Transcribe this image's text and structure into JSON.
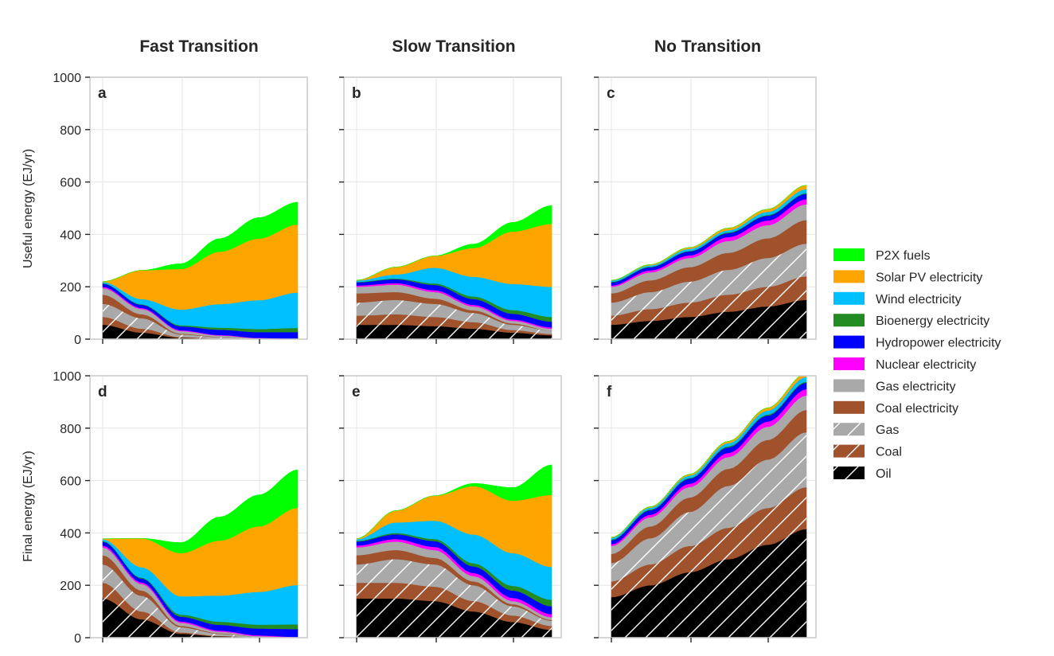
{
  "column_titles": [
    "Fast Transition",
    "Slow Transition",
    "No Transition"
  ],
  "row_ylabels": [
    "Useful energy (EJ/yr)",
    "Final energy (EJ/yr)"
  ],
  "y_ticks": [
    "0",
    "200",
    "400",
    "600",
    "800",
    "1000"
  ],
  "legend": [
    {
      "label": "P2X fuels",
      "color": "#00ff00",
      "hatch": false
    },
    {
      "label": "Solar PV electricity",
      "color": "#ffa500",
      "hatch": false
    },
    {
      "label": "Wind electricity",
      "color": "#00bfff",
      "hatch": false
    },
    {
      "label": "Bioenergy electricity",
      "color": "#228b22",
      "hatch": false
    },
    {
      "label": "Hydropower electricity",
      "color": "#0000ff",
      "hatch": false
    },
    {
      "label": "Nuclear electricity",
      "color": "#ff00ff",
      "hatch": false
    },
    {
      "label": "Gas electricity",
      "color": "#a9a9a9",
      "hatch": false
    },
    {
      "label": "Coal electricity",
      "color": "#a0522d",
      "hatch": false
    },
    {
      "label": "Gas",
      "color": "#a9a9a9",
      "hatch": true
    },
    {
      "label": "Coal",
      "color": "#a0522d",
      "hatch": true
    },
    {
      "label": "Oil",
      "color": "#000000",
      "hatch": true
    }
  ],
  "chart_data": [
    {
      "panel": "a",
      "type": "area",
      "stacked": true,
      "column": "Fast Transition",
      "ylabel": "Useful energy (EJ/yr)",
      "ylim": [
        0,
        1000
      ],
      "x": [
        0,
        1,
        2,
        3,
        4,
        5
      ],
      "series": [
        {
          "name": "Oil",
          "values": [
            55,
            25,
            5,
            2,
            0,
            0
          ]
        },
        {
          "name": "Coal",
          "values": [
            30,
            15,
            3,
            1,
            0,
            0
          ]
        },
        {
          "name": "Gas",
          "values": [
            50,
            40,
            10,
            5,
            2,
            1
          ]
        },
        {
          "name": "Coal electricity",
          "values": [
            35,
            15,
            3,
            1,
            0,
            0
          ]
        },
        {
          "name": "Gas electricity",
          "values": [
            25,
            20,
            10,
            5,
            2,
            0
          ]
        },
        {
          "name": "Nuclear electricity",
          "values": [
            5,
            4,
            3,
            2,
            1,
            1
          ]
        },
        {
          "name": "Hydropower electricity",
          "values": [
            12,
            12,
            15,
            20,
            22,
            25
          ]
        },
        {
          "name": "Bioenergy electricity",
          "values": [
            2,
            2,
            4,
            8,
            12,
            16
          ]
        },
        {
          "name": "Wind electricity",
          "values": [
            5,
            20,
            60,
            90,
            110,
            135
          ]
        },
        {
          "name": "Solar PV electricity",
          "values": [
            1,
            110,
            155,
            200,
            235,
            260
          ]
        },
        {
          "name": "P2X fuels",
          "values": [
            0,
            0,
            20,
            50,
            80,
            85
          ]
        }
      ]
    },
    {
      "panel": "b",
      "type": "area",
      "stacked": true,
      "column": "Slow Transition",
      "ylim": [
        0,
        1000
      ],
      "x": [
        0,
        1,
        2,
        3,
        4,
        5
      ],
      "series": [
        {
          "name": "Oil",
          "values": [
            55,
            55,
            50,
            40,
            25,
            15
          ]
        },
        {
          "name": "Coal",
          "values": [
            35,
            40,
            35,
            25,
            10,
            5
          ]
        },
        {
          "name": "Gas",
          "values": [
            50,
            55,
            50,
            35,
            20,
            12
          ]
        },
        {
          "name": "Coal electricity",
          "values": [
            35,
            30,
            20,
            10,
            5,
            0
          ]
        },
        {
          "name": "Gas electricity",
          "values": [
            25,
            28,
            25,
            15,
            10,
            8
          ]
        },
        {
          "name": "Nuclear electricity",
          "values": [
            5,
            6,
            7,
            6,
            5,
            5
          ]
        },
        {
          "name": "Hydropower electricity",
          "values": [
            12,
            15,
            20,
            22,
            22,
            22
          ]
        },
        {
          "name": "Bioenergy electricity",
          "values": [
            2,
            3,
            6,
            10,
            14,
            18
          ]
        },
        {
          "name": "Wind electricity",
          "values": [
            5,
            15,
            60,
            75,
            100,
            115
          ]
        },
        {
          "name": "Solar PV electricity",
          "values": [
            1,
            28,
            45,
            110,
            200,
            240
          ]
        },
        {
          "name": "P2X fuels",
          "values": [
            0,
            0,
            0,
            15,
            35,
            70
          ]
        }
      ]
    },
    {
      "panel": "c",
      "type": "area",
      "stacked": true,
      "column": "No Transition",
      "ylim": [
        0,
        1000
      ],
      "x": [
        0,
        1,
        2,
        3,
        4,
        5
      ],
      "series": [
        {
          "name": "Oil",
          "values": [
            55,
            70,
            85,
            105,
            125,
            150
          ]
        },
        {
          "name": "Coal",
          "values": [
            35,
            45,
            55,
            65,
            75,
            90
          ]
        },
        {
          "name": "Gas",
          "values": [
            50,
            65,
            80,
            95,
            110,
            125
          ]
        },
        {
          "name": "Coal electricity",
          "values": [
            35,
            45,
            55,
            65,
            75,
            90
          ]
        },
        {
          "name": "Gas electricity",
          "values": [
            25,
            30,
            35,
            45,
            50,
            60
          ]
        },
        {
          "name": "Nuclear electricity",
          "values": [
            5,
            8,
            10,
            15,
            18,
            20
          ]
        },
        {
          "name": "Hydropower electricity",
          "values": [
            12,
            12,
            15,
            15,
            18,
            20
          ]
        },
        {
          "name": "Bioenergy electricity",
          "values": [
            2,
            2,
            2,
            3,
            3,
            3
          ]
        },
        {
          "name": "Wind electricity",
          "values": [
            5,
            5,
            8,
            8,
            12,
            15
          ]
        },
        {
          "name": "Solar PV electricity",
          "values": [
            1,
            3,
            5,
            8,
            10,
            15
          ]
        },
        {
          "name": "P2X fuels",
          "values": [
            0,
            0,
            0,
            0,
            0,
            0
          ]
        }
      ]
    },
    {
      "panel": "d",
      "type": "area",
      "stacked": true,
      "column": "Fast Transition",
      "ylabel": "Final energy (EJ/yr)",
      "ylim": [
        0,
        1000
      ],
      "x": [
        0,
        1,
        2,
        3,
        4,
        5
      ],
      "series": [
        {
          "name": "Oil",
          "values": [
            150,
            70,
            15,
            5,
            1,
            0
          ]
        },
        {
          "name": "Coal",
          "values": [
            60,
            30,
            5,
            2,
            0,
            0
          ]
        },
        {
          "name": "Gas",
          "values": [
            70,
            60,
            20,
            8,
            3,
            1
          ]
        },
        {
          "name": "Coal electricity",
          "values": [
            35,
            20,
            5,
            2,
            0,
            0
          ]
        },
        {
          "name": "Gas electricity",
          "values": [
            30,
            25,
            12,
            6,
            2,
            0
          ]
        },
        {
          "name": "Nuclear electricity",
          "values": [
            7,
            6,
            5,
            4,
            3,
            2
          ]
        },
        {
          "name": "Hydropower electricity",
          "values": [
            15,
            15,
            18,
            22,
            26,
            30
          ]
        },
        {
          "name": "Bioenergy electricity",
          "values": [
            3,
            3,
            8,
            12,
            15,
            18
          ]
        },
        {
          "name": "Wind electricity",
          "values": [
            6,
            40,
            70,
            100,
            125,
            150
          ]
        },
        {
          "name": "Solar PV electricity",
          "values": [
            2,
            110,
            165,
            210,
            250,
            295
          ]
        },
        {
          "name": "P2X fuels",
          "values": [
            0,
            0,
            40,
            90,
            120,
            145
          ]
        }
      ]
    },
    {
      "panel": "e",
      "type": "area",
      "stacked": true,
      "column": "Slow Transition",
      "ylim": [
        0,
        1000
      ],
      "x": [
        0,
        1,
        2,
        3,
        4,
        5
      ],
      "series": [
        {
          "name": "Oil",
          "values": [
            150,
            150,
            140,
            100,
            60,
            30
          ]
        },
        {
          "name": "Coal",
          "values": [
            60,
            60,
            55,
            40,
            25,
            15
          ]
        },
        {
          "name": "Gas",
          "values": [
            70,
            90,
            85,
            60,
            35,
            20
          ]
        },
        {
          "name": "Coal electricity",
          "values": [
            35,
            35,
            25,
            15,
            8,
            3
          ]
        },
        {
          "name": "Gas electricity",
          "values": [
            30,
            32,
            30,
            20,
            12,
            10
          ]
        },
        {
          "name": "Nuclear electricity",
          "values": [
            7,
            10,
            12,
            12,
            12,
            12
          ]
        },
        {
          "name": "Hydropower electricity",
          "values": [
            15,
            18,
            22,
            25,
            28,
            30
          ]
        },
        {
          "name": "Bioenergy electricity",
          "values": [
            3,
            5,
            8,
            12,
            18,
            25
          ]
        },
        {
          "name": "Wind electricity",
          "values": [
            6,
            40,
            70,
            110,
            125,
            125
          ]
        },
        {
          "name": "Solar PV electricity",
          "values": [
            2,
            45,
            95,
            185,
            200,
            275
          ]
        },
        {
          "name": "P2X fuels",
          "values": [
            0,
            0,
            0,
            10,
            50,
            115
          ]
        }
      ]
    },
    {
      "panel": "f",
      "type": "area",
      "stacked": true,
      "column": "No Transition",
      "ylim": [
        0,
        1000
      ],
      "x": [
        0,
        1,
        2,
        3,
        4,
        5
      ],
      "series": [
        {
          "name": "Oil",
          "values": [
            155,
            200,
            250,
            300,
            355,
            415
          ]
        },
        {
          "name": "Coal",
          "values": [
            60,
            80,
            100,
            120,
            140,
            160
          ]
        },
        {
          "name": "Gas",
          "values": [
            70,
            100,
            130,
            160,
            185,
            210
          ]
        },
        {
          "name": "Coal electricity",
          "values": [
            35,
            45,
            55,
            65,
            75,
            85
          ]
        },
        {
          "name": "Gas electricity",
          "values": [
            30,
            35,
            40,
            45,
            50,
            55
          ]
        },
        {
          "name": "Nuclear electricity",
          "values": [
            7,
            10,
            13,
            16,
            20,
            24
          ]
        },
        {
          "name": "Hydropower electricity",
          "values": [
            15,
            17,
            19,
            21,
            23,
            25
          ]
        },
        {
          "name": "Bioenergy electricity",
          "values": [
            3,
            3,
            3,
            4,
            4,
            4
          ]
        },
        {
          "name": "Wind electricity",
          "values": [
            6,
            7,
            9,
            12,
            15,
            18
          ]
        },
        {
          "name": "Solar PV electricity",
          "values": [
            2,
            3,
            5,
            7,
            10,
            14
          ]
        },
        {
          "name": "P2X fuels",
          "values": [
            0,
            0,
            0,
            0,
            0,
            0
          ]
        }
      ]
    }
  ]
}
